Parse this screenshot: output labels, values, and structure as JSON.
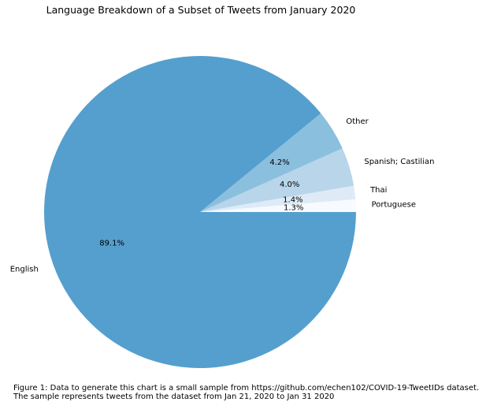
{
  "chart_data": {
    "type": "pie",
    "title": "Language Breakdown of a Subset of Tweets from January 2020",
    "start_angle_deg": 0,
    "direction": "counterclockwise",
    "slices": [
      {
        "label": "Portuguese",
        "value": 1.3,
        "pct_label": "1.3%",
        "color": "#f7fbff"
      },
      {
        "label": "Thai",
        "value": 1.4,
        "pct_label": "1.4%",
        "color": "#deebf7"
      },
      {
        "label": "Spanish; Castilian",
        "value": 4.0,
        "pct_label": "4.0%",
        "color": "#b8d5ea"
      },
      {
        "label": "Other",
        "value": 4.2,
        "pct_label": "4.2%",
        "color": "#8bbfde"
      },
      {
        "label": "English",
        "value": 89.1,
        "pct_label": "89.1%",
        "color": "#549fce"
      }
    ]
  },
  "caption": {
    "line1": "Figure 1: Data to generate this chart is a small sample from https://github.com/echen102/COVID-19-TweetIDs dataset.",
    "line2": "The sample represents tweets from the dataset from Jan 21, 2020 to Jan 31 2020"
  }
}
